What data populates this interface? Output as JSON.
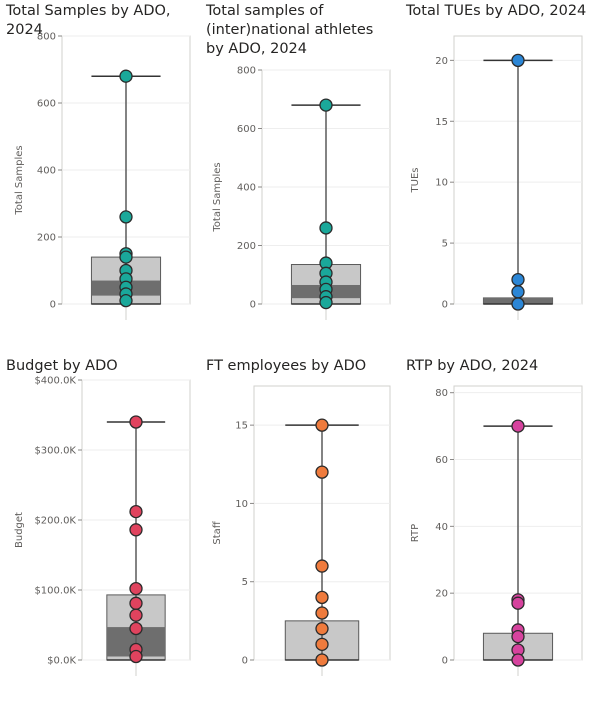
{
  "chart_data": [
    {
      "type": "box",
      "title_lines": [
        "Total Samples by ADO,",
        "2024"
      ],
      "ylabel": "Total Samples",
      "ylim": [
        0,
        800
      ],
      "yticks": [
        0,
        200,
        400,
        600,
        800
      ],
      "tick_labels": [
        "0",
        "200",
        "400",
        "600",
        "800"
      ],
      "box": {
        "min": 0,
        "q1": 25,
        "median": 70,
        "q3": 140,
        "max": 680
      },
      "points": [
        680,
        260,
        150,
        140,
        100,
        75,
        50,
        30,
        10
      ],
      "color": "#1aa89a"
    },
    {
      "type": "box",
      "title_lines": [
        "Total samples of",
        "(inter)national athletes",
        "by ADO, 2024"
      ],
      "ylabel": "Total Samples",
      "ylim": [
        0,
        800
      ],
      "yticks": [
        0,
        200,
        400,
        600,
        800
      ],
      "tick_labels": [
        "0",
        "200",
        "400",
        "600",
        "800"
      ],
      "box": {
        "min": 0,
        "q1": 20,
        "median": 65,
        "q3": 135,
        "max": 680
      },
      "points": [
        680,
        260,
        140,
        105,
        75,
        50,
        25,
        5
      ],
      "color": "#1aa89a"
    },
    {
      "type": "box",
      "title_lines": [
        "Total TUEs by ADO, 2024"
      ],
      "ylabel": "TUEs",
      "ylim": [
        0,
        22
      ],
      "yticks": [
        0,
        5,
        10,
        15,
        20
      ],
      "tick_labels": [
        "0",
        "5",
        "10",
        "15",
        "20"
      ],
      "box": {
        "min": 0,
        "q1": 0,
        "median": 0.5,
        "q3": 0.5,
        "max": 20
      },
      "points": [
        20,
        2,
        1,
        0
      ],
      "color": "#2b86d6"
    },
    {
      "type": "box",
      "title_lines": [
        "Budget by ADO"
      ],
      "ylabel": "Budget",
      "ylim": [
        0,
        400000
      ],
      "yticks": [
        0,
        100000,
        200000,
        300000,
        400000
      ],
      "tick_labels": [
        "$0.0K",
        "$100.0K",
        "$200.0K",
        "$300.0K",
        "$400.0K"
      ],
      "box": {
        "min": 0,
        "q1": 5000,
        "median": 47000,
        "q3": 93000,
        "max": 340000
      },
      "points": [
        340000,
        212000,
        186000,
        102000,
        81000,
        64000,
        45000,
        15000,
        5000
      ],
      "color": "#e0435e"
    },
    {
      "type": "box",
      "title_lines": [
        "FT employees by ADO"
      ],
      "ylabel": "Staff",
      "ylim": [
        0,
        17.5
      ],
      "yticks": [
        0,
        5,
        10,
        15
      ],
      "tick_labels": [
        "0",
        "5",
        "10",
        "15"
      ],
      "box": {
        "min": 0,
        "q1": 0,
        "median": 0,
        "q3": 2.5,
        "max": 15
      },
      "points": [
        15,
        12,
        6,
        4,
        3,
        2,
        1,
        0
      ],
      "color": "#ef7b3d"
    },
    {
      "type": "box",
      "title_lines": [
        "RTP by ADO, 2024"
      ],
      "ylabel": "RTP",
      "ylim": [
        0,
        82
      ],
      "yticks": [
        0,
        20,
        40,
        60,
        80
      ],
      "tick_labels": [
        "0",
        "20",
        "40",
        "60",
        "80"
      ],
      "box": {
        "min": 0,
        "q1": 0,
        "median": 0,
        "q3": 8,
        "max": 70
      },
      "points": [
        70,
        18,
        17,
        9,
        7,
        3,
        0
      ],
      "color": "#d6439e"
    }
  ]
}
